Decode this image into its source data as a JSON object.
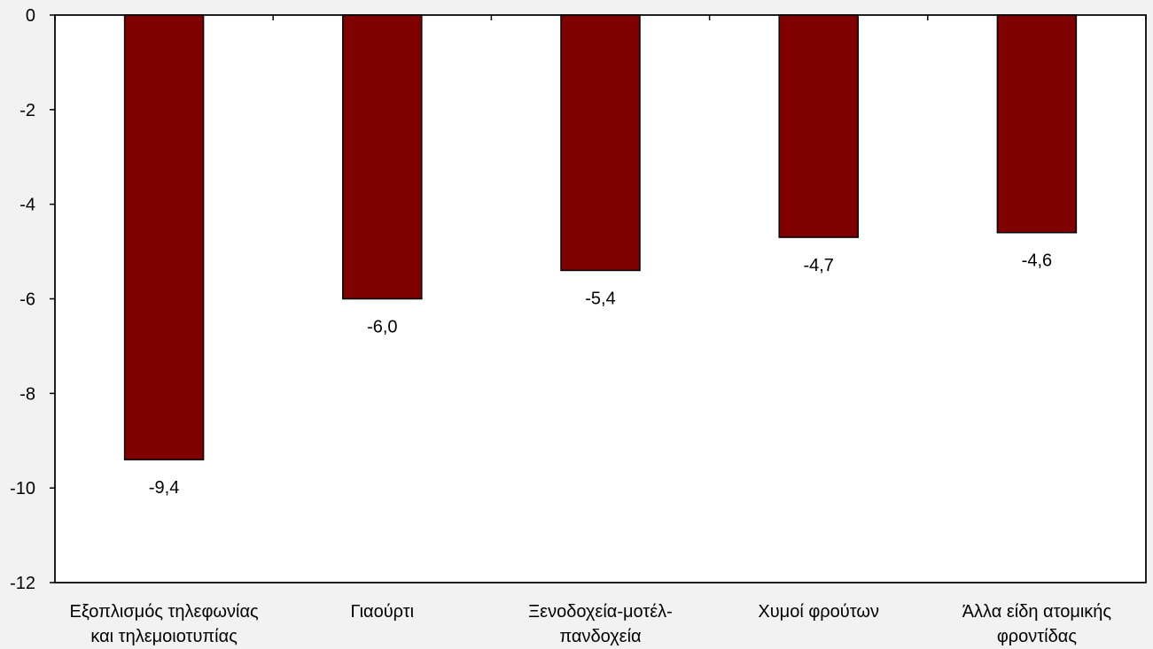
{
  "chart_data": {
    "type": "bar",
    "categories": [
      [
        "Εξοπλισμός τηλεφωνίας",
        "και τηλεμοιοτυπίας"
      ],
      [
        "Γιαούρτι"
      ],
      [
        "Ξενοδοχεία-μοτέλ-",
        "πανδοχεία"
      ],
      [
        "Χυμοί φρούτων"
      ],
      [
        "Άλλα είδη ατομικής",
        "φροντίδας"
      ]
    ],
    "values": [
      -9.4,
      -6.0,
      -5.4,
      -4.7,
      -4.6
    ],
    "value_labels": [
      "-9,4",
      "-6,0",
      "-5,4",
      "-4,7",
      "-4,6"
    ],
    "title": "",
    "xlabel": "",
    "ylabel": "",
    "ylim": [
      -12,
      0
    ],
    "yticks": [
      0,
      -2,
      -4,
      -6,
      -8,
      -10,
      -12
    ],
    "ytick_labels": [
      "0",
      "-2",
      "-4",
      "-6",
      "-8",
      "-10",
      "-12"
    ],
    "grid": false,
    "legend": "none",
    "bar_color": "#800000",
    "plot_background": "#ffffff",
    "page_background": "#f2f2f2"
  }
}
